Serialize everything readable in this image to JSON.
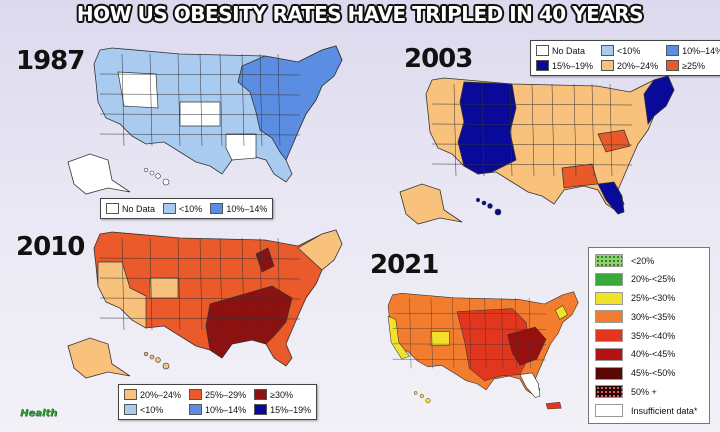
{
  "title": "HOW US OBESITY RATES HAVE TRIPLED IN 40 YEARS",
  "logo_text": "Health",
  "maps": [
    {
      "year": "1987",
      "main_color": "#a9cbef",
      "east_color": "#5b8ee3",
      "white_color": "#ffffff",
      "legend": [
        {
          "label": "No Data",
          "color": "#ffffff"
        },
        {
          "label": "<10%",
          "color": "#a9cbef"
        },
        {
          "label": "10%–14%",
          "color": "#5b8ee3"
        }
      ]
    },
    {
      "year": "2003",
      "main_color": "#f9c27c",
      "dark_color": "#0a0a9a",
      "accent_color": "#e85a2a",
      "legend": [
        {
          "label": "No Data",
          "color": "#ffffff"
        },
        {
          "label": "<10%",
          "color": "#a9cbef"
        },
        {
          "label": "10%–14%",
          "color": "#5b8ee3"
        },
        {
          "label": "15%–19%",
          "color": "#0a0a9a"
        },
        {
          "label": "20%–24%",
          "color": "#f9c27c"
        },
        {
          "label": "≥25%",
          "color": "#e85a2a"
        }
      ]
    },
    {
      "year": "2010",
      "main_color": "#ea5a2a",
      "light_color": "#f9c27c",
      "dark_color": "#8c1212",
      "legend": [
        {
          "label": "20%–24%",
          "color": "#f9c27c"
        },
        {
          "label": "25%–29%",
          "color": "#ea5a2a"
        },
        {
          "label": "≥30%",
          "color": "#8c1212"
        },
        {
          "label": "<10%",
          "color": "#a9cbef"
        },
        {
          "label": "10%–14%",
          "color": "#5b8ee3"
        },
        {
          "label": "15%–19%",
          "color": "#0a0a9a"
        }
      ]
    },
    {
      "year": "2021",
      "main_color": "#f37d2e",
      "red_color": "#e2361e",
      "dark_color": "#9b0f0f",
      "yellow_color": "#f2e12a",
      "legend": [
        {
          "label": "<20%",
          "color": "#8fd36a"
        },
        {
          "label": "20%-<25%",
          "color": "#3aa93a"
        },
        {
          "label": "25%-<30%",
          "color": "#f2e12a"
        },
        {
          "label": "30%-<35%",
          "color": "#f37d2e"
        },
        {
          "label": "35%-<40%",
          "color": "#e2361e"
        },
        {
          "label": "40%-<45%",
          "color": "#b51313"
        },
        {
          "label": "45%-<50%",
          "color": "#5a0707"
        },
        {
          "label": "50% +",
          "color": "#2a0505"
        },
        {
          "label": "Insufficient data*",
          "color": "#ffffff"
        }
      ]
    }
  ]
}
